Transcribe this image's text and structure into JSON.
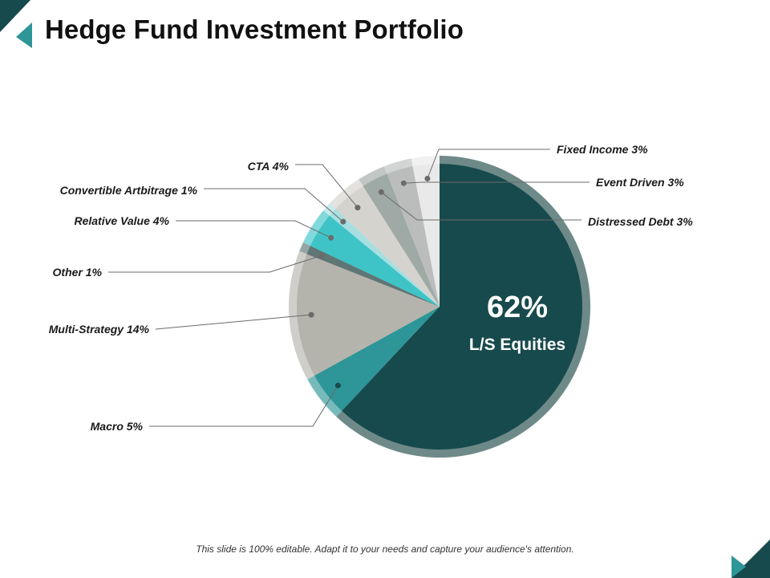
{
  "slide": {
    "title": "Hedge Fund Investment Portfolio",
    "footer": "This slide is 100% editable. Adapt it to your needs and capture your audience's attention."
  },
  "chart_data": {
    "type": "pie",
    "title": "Hedge Fund Investment Portfolio",
    "highlight": {
      "value_text": "62%",
      "label": "L/S Equities"
    },
    "slices": [
      {
        "name": "L/S Equities",
        "label": "L/S Equities",
        "value": 62,
        "color": "#174a4c"
      },
      {
        "name": "Macro",
        "label": "Macro 5%",
        "value": 5,
        "color": "#2e9598"
      },
      {
        "name": "Multi-Strategy",
        "label": "Multi-Strategy 14%",
        "value": 14,
        "color": "#b5b4ac"
      },
      {
        "name": "Other",
        "label": "Other 1%",
        "value": 1,
        "color": "#5e7674"
      },
      {
        "name": "Relative Value",
        "label": "Relative Value 4%",
        "value": 4,
        "color": "#3ec4c7"
      },
      {
        "name": "Convertible Arbitrage",
        "label": "Convertible Artbitrage 1%",
        "value": 1,
        "color": "#a7dfe1"
      },
      {
        "name": "CTA",
        "label": "CTA 4%",
        "value": 4,
        "color": "#d4d3cd"
      },
      {
        "name": "Distressed Debt",
        "label": "Distressed Debt 3%",
        "value": 3,
        "color": "#9fa9a6"
      },
      {
        "name": "Event Driven",
        "label": "Event Driven 3%",
        "value": 3,
        "color": "#bbbdbd"
      },
      {
        "name": "Fixed Income",
        "label": "Fixed Income 3%",
        "value": 3,
        "color": "#e9e9e9"
      }
    ]
  }
}
